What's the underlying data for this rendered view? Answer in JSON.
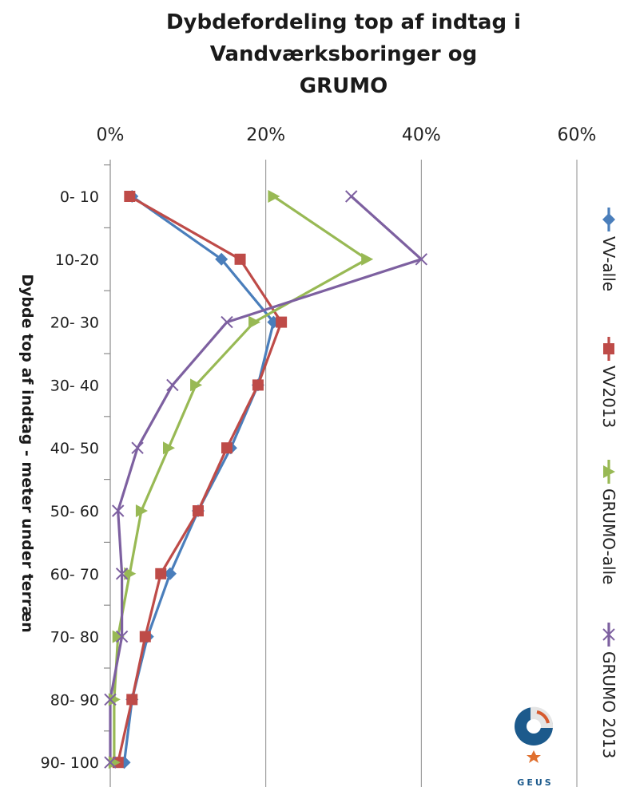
{
  "chart_data": {
    "type": "line",
    "title_lines": [
      "Dybdefordeling top af indtag i",
      "Vandværksboringer og",
      "GRUMO"
    ],
    "ylabel": "Dybde top af indtag - meter under terræn",
    "xlabel": "",
    "x_ticks": [
      "0%",
      "20%",
      "40%",
      "60%"
    ],
    "xlim": [
      0,
      60
    ],
    "x_unit": "percent",
    "x_axis_position": "top",
    "categories": [
      "0- 10",
      "10-20",
      "20- 30",
      "30- 40",
      "40- 50",
      "50- 60",
      "60- 70",
      "70- 80",
      "80- 90",
      "90- 100"
    ],
    "grid": "vertical major gridlines",
    "legend_position": "right, rotated",
    "series": [
      {
        "name": "VV-alle",
        "color": "#4a7ebb",
        "marker": "diamond",
        "values": [
          2.8,
          14.3,
          21.0,
          19.0,
          15.5,
          11.3,
          7.7,
          4.8,
          2.8,
          1.8
        ]
      },
      {
        "name": "VV2013",
        "color": "#be4b48",
        "marker": "square",
        "values": [
          2.5,
          16.7,
          22.0,
          19.0,
          15.0,
          11.3,
          6.5,
          4.5,
          2.8,
          1.0
        ]
      },
      {
        "name": "GRUMO-alle",
        "color": "#98b954",
        "marker": "triangle",
        "values": [
          21.0,
          33.0,
          18.5,
          11.0,
          7.5,
          4.0,
          2.5,
          1.0,
          0.5,
          0.5
        ]
      },
      {
        "name": "GRUMO 2013",
        "color": "#7d60a0",
        "marker": "x",
        "values": [
          31.0,
          40.0,
          15.0,
          8.0,
          3.5,
          1.0,
          1.5,
          1.5,
          0.0,
          0.0
        ]
      }
    ]
  },
  "logo": {
    "text": "GEUS"
  }
}
